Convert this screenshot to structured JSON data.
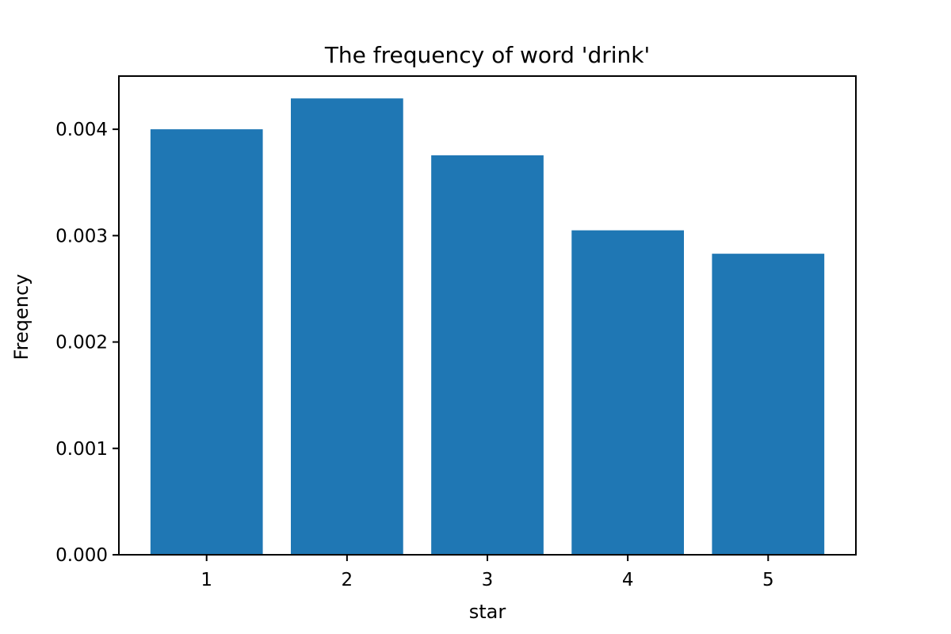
{
  "chart_data": {
    "type": "bar",
    "title": "The frequency of word 'drink'",
    "xlabel": "star",
    "ylabel": "Freqency",
    "categories": [
      "1",
      "2",
      "3",
      "4",
      "5"
    ],
    "values": [
      0.004,
      0.00429,
      0.003755,
      0.00305,
      0.00283
    ],
    "ylim": [
      0,
      0.0045
    ],
    "yticks": [
      "0.000",
      "0.001",
      "0.002",
      "0.003",
      "0.004"
    ],
    "bar_color": "#1f77b4",
    "grid": false
  }
}
